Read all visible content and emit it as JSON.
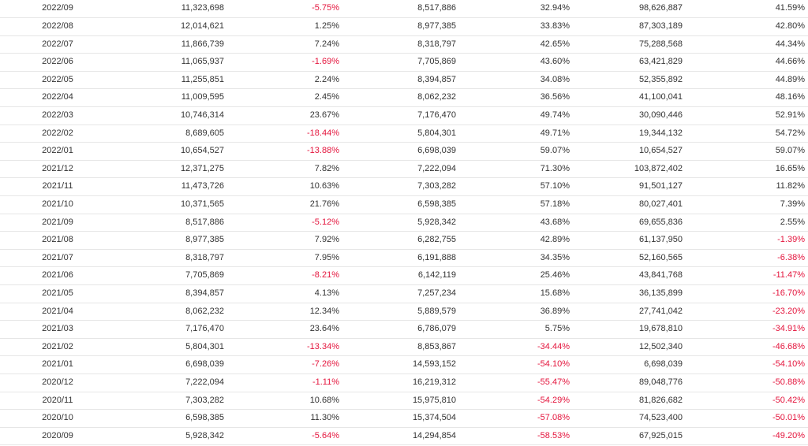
{
  "table": {
    "rows": [
      {
        "month": "2022/09",
        "revenue": "11,323,698",
        "mom": "-5.75%",
        "last_year": "8,517,886",
        "yoy": "32.94%",
        "cumulative": "98,626,887",
        "cum_yoy": "41.59%"
      },
      {
        "month": "2022/08",
        "revenue": "12,014,621",
        "mom": "1.25%",
        "last_year": "8,977,385",
        "yoy": "33.83%",
        "cumulative": "87,303,189",
        "cum_yoy": "42.80%"
      },
      {
        "month": "2022/07",
        "revenue": "11,866,739",
        "mom": "7.24%",
        "last_year": "8,318,797",
        "yoy": "42.65%",
        "cumulative": "75,288,568",
        "cum_yoy": "44.34%"
      },
      {
        "month": "2022/06",
        "revenue": "11,065,937",
        "mom": "-1.69%",
        "last_year": "7,705,869",
        "yoy": "43.60%",
        "cumulative": "63,421,829",
        "cum_yoy": "44.66%"
      },
      {
        "month": "2022/05",
        "revenue": "11,255,851",
        "mom": "2.24%",
        "last_year": "8,394,857",
        "yoy": "34.08%",
        "cumulative": "52,355,892",
        "cum_yoy": "44.89%"
      },
      {
        "month": "2022/04",
        "revenue": "11,009,595",
        "mom": "2.45%",
        "last_year": "8,062,232",
        "yoy": "36.56%",
        "cumulative": "41,100,041",
        "cum_yoy": "48.16%"
      },
      {
        "month": "2022/03",
        "revenue": "10,746,314",
        "mom": "23.67%",
        "last_year": "7,176,470",
        "yoy": "49.74%",
        "cumulative": "30,090,446",
        "cum_yoy": "52.91%"
      },
      {
        "month": "2022/02",
        "revenue": "8,689,605",
        "mom": "-18.44%",
        "last_year": "5,804,301",
        "yoy": "49.71%",
        "cumulative": "19,344,132",
        "cum_yoy": "54.72%"
      },
      {
        "month": "2022/01",
        "revenue": "10,654,527",
        "mom": "-13.88%",
        "last_year": "6,698,039",
        "yoy": "59.07%",
        "cumulative": "10,654,527",
        "cum_yoy": "59.07%"
      },
      {
        "month": "2021/12",
        "revenue": "12,371,275",
        "mom": "7.82%",
        "last_year": "7,222,094",
        "yoy": "71.30%",
        "cumulative": "103,872,402",
        "cum_yoy": "16.65%"
      },
      {
        "month": "2021/11",
        "revenue": "11,473,726",
        "mom": "10.63%",
        "last_year": "7,303,282",
        "yoy": "57.10%",
        "cumulative": "91,501,127",
        "cum_yoy": "11.82%"
      },
      {
        "month": "2021/10",
        "revenue": "10,371,565",
        "mom": "21.76%",
        "last_year": "6,598,385",
        "yoy": "57.18%",
        "cumulative": "80,027,401",
        "cum_yoy": "7.39%"
      },
      {
        "month": "2021/09",
        "revenue": "8,517,886",
        "mom": "-5.12%",
        "last_year": "5,928,342",
        "yoy": "43.68%",
        "cumulative": "69,655,836",
        "cum_yoy": "2.55%"
      },
      {
        "month": "2021/08",
        "revenue": "8,977,385",
        "mom": "7.92%",
        "last_year": "6,282,755",
        "yoy": "42.89%",
        "cumulative": "61,137,950",
        "cum_yoy": "-1.39%"
      },
      {
        "month": "2021/07",
        "revenue": "8,318,797",
        "mom": "7.95%",
        "last_year": "6,191,888",
        "yoy": "34.35%",
        "cumulative": "52,160,565",
        "cum_yoy": "-6.38%"
      },
      {
        "month": "2021/06",
        "revenue": "7,705,869",
        "mom": "-8.21%",
        "last_year": "6,142,119",
        "yoy": "25.46%",
        "cumulative": "43,841,768",
        "cum_yoy": "-11.47%"
      },
      {
        "month": "2021/05",
        "revenue": "8,394,857",
        "mom": "4.13%",
        "last_year": "7,257,234",
        "yoy": "15.68%",
        "cumulative": "36,135,899",
        "cum_yoy": "-16.70%"
      },
      {
        "month": "2021/04",
        "revenue": "8,062,232",
        "mom": "12.34%",
        "last_year": "5,889,579",
        "yoy": "36.89%",
        "cumulative": "27,741,042",
        "cum_yoy": "-23.20%"
      },
      {
        "month": "2021/03",
        "revenue": "7,176,470",
        "mom": "23.64%",
        "last_year": "6,786,079",
        "yoy": "5.75%",
        "cumulative": "19,678,810",
        "cum_yoy": "-34.91%"
      },
      {
        "month": "2021/02",
        "revenue": "5,804,301",
        "mom": "-13.34%",
        "last_year": "8,853,867",
        "yoy": "-34.44%",
        "cumulative": "12,502,340",
        "cum_yoy": "-46.68%"
      },
      {
        "month": "2021/01",
        "revenue": "6,698,039",
        "mom": "-7.26%",
        "last_year": "14,593,152",
        "yoy": "-54.10%",
        "cumulative": "6,698,039",
        "cum_yoy": "-54.10%"
      },
      {
        "month": "2020/12",
        "revenue": "7,222,094",
        "mom": "-1.11%",
        "last_year": "16,219,312",
        "yoy": "-55.47%",
        "cumulative": "89,048,776",
        "cum_yoy": "-50.88%"
      },
      {
        "month": "2020/11",
        "revenue": "7,303,282",
        "mom": "10.68%",
        "last_year": "15,975,810",
        "yoy": "-54.29%",
        "cumulative": "81,826,682",
        "cum_yoy": "-50.42%"
      },
      {
        "month": "2020/10",
        "revenue": "6,598,385",
        "mom": "11.30%",
        "last_year": "15,374,504",
        "yoy": "-57.08%",
        "cumulative": "74,523,400",
        "cum_yoy": "-50.01%"
      },
      {
        "month": "2020/09",
        "revenue": "5,928,342",
        "mom": "-5.64%",
        "last_year": "14,294,854",
        "yoy": "-58.53%",
        "cumulative": "67,925,015",
        "cum_yoy": "-49.20%"
      }
    ]
  },
  "colors": {
    "negative": "#e4143c",
    "text": "#333333",
    "row_border": "#e6e6e6"
  }
}
